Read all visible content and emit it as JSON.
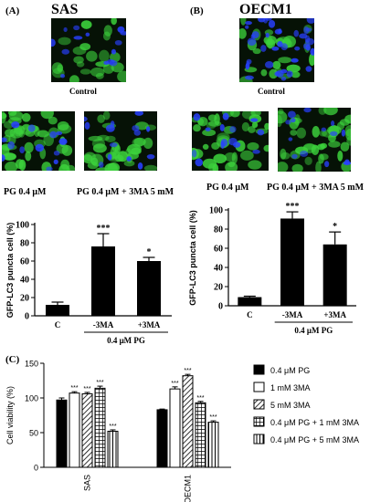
{
  "panelA": {
    "letter": "(A)",
    "title": "SAS",
    "captions": {
      "control": "Control",
      "pg": "PG 0.4 μM",
      "pg3ma": "PG 0.4 μM + 3MA 5 mM"
    }
  },
  "panelB": {
    "letter": "(B)",
    "title": "OECM1",
    "captions": {
      "control": "Control",
      "pg": "PG 0.4 μM",
      "pg3ma": "PG 0.4 μM + 3MA 5 mM"
    }
  },
  "panelC": {
    "letter": "(C)"
  },
  "colors": {
    "bar": "#000000",
    "background": "#ffffff",
    "gfp": "#3cd23c",
    "nucleus": "#2840ff",
    "cell_bg": "#061206"
  },
  "chart_data": [
    {
      "type": "bar",
      "ylabel": "GFP-LC3 puncta cell  (%)",
      "ylim": [
        0,
        100
      ],
      "yticks": [
        0,
        20,
        40,
        60,
        80,
        100
      ],
      "categories": [
        "C",
        "-3MA",
        "+3MA"
      ],
      "values": [
        12,
        76,
        60
      ],
      "errors": [
        3,
        14,
        4
      ],
      "significance": [
        "",
        "***",
        "*"
      ],
      "group_label": "0.4 μM PG"
    },
    {
      "type": "bar",
      "ylabel": "GFP-LC3 puncta cell  (%)",
      "ylim": [
        0,
        100
      ],
      "yticks": [
        0,
        20,
        40,
        60,
        80,
        100
      ],
      "categories": [
        "C",
        "-3MA",
        "+3MA"
      ],
      "values": [
        9,
        91,
        64
      ],
      "errors": [
        1,
        7,
        13
      ],
      "significance": [
        "",
        "***",
        "*"
      ],
      "group_label": "0.4 μM PG"
    },
    {
      "type": "bar",
      "ylabel": "Cell viability (%)",
      "ylim": [
        0,
        150
      ],
      "yticks": [
        0,
        50,
        100,
        150
      ],
      "categories": [
        "SAS",
        "OECM1"
      ],
      "series": [
        {
          "name": "0.4 μM PG",
          "pattern": "solid",
          "values": [
            97,
            83
          ],
          "errors": [
            3,
            1
          ],
          "significance": [
            "",
            ""
          ]
        },
        {
          "name": "1 mM 3MA",
          "pattern": "white",
          "values": [
            107,
            113
          ],
          "errors": [
            2,
            3
          ],
          "significance": [
            "***",
            "***"
          ]
        },
        {
          "name": "5 mM 3MA",
          "pattern": "diagonal",
          "values": [
            106,
            132
          ],
          "errors": [
            2,
            2
          ],
          "significance": [
            "***",
            "***"
          ]
        },
        {
          "name": "0.4 μM PG + 1 mM 3MA",
          "pattern": "grid",
          "values": [
            114,
            93
          ],
          "errors": [
            3,
            2
          ],
          "significance": [
            "***",
            "***"
          ]
        },
        {
          "name": "0.4 μM PG + 5 mM 3MA",
          "pattern": "vertical",
          "values": [
            52,
            65
          ],
          "errors": [
            2,
            2
          ],
          "significance": [
            "***",
            "***"
          ]
        }
      ],
      "legend_position": "right"
    }
  ]
}
